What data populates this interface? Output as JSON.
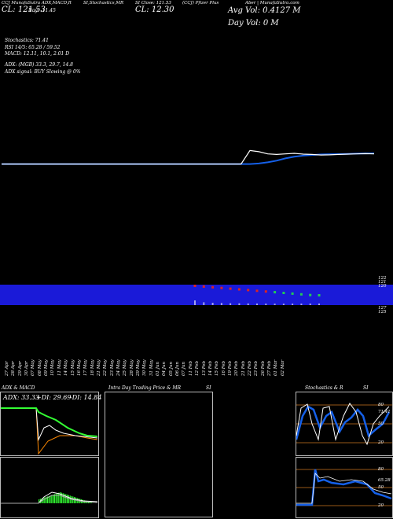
{
  "header": {
    "line1_left": "CCJ MunafaSutra ADX,MACD,R",
    "line1_stoch": "SI,Stochastics,MR",
    "line1_close": "SI Close: 121.53",
    "line1_mid": "(CCJ) Pfizer Plus",
    "line1_right": "Aber | MunafaSutra.com",
    "line2_left": "CL: 121.53",
    "line2_day": "Day: -11.45",
    "line2_cl": "CL: 12.30",
    "avg_vol": "Avg Vol: 0.4127 M",
    "day_vol": "Day Vol: 0  M"
  },
  "indicators": {
    "stochastics": "Stochastics: 71.41",
    "rsi": "RSI 14/5: 65.28 / 59.52",
    "macd": "MACD: 12.11,  10.1,  2.01 D",
    "adx": "ADX:             (MGB) 33.3,  29.7,  14.8",
    "adx_signal": "ADX  signal:                BUY Slowing @ 0%"
  },
  "price_labels": {
    "top_right": [
      "122",
      "121",
      "120"
    ],
    "bottom_right": [
      "127",
      "125"
    ]
  },
  "dates": [
    "27 Apr",
    "28 Apr",
    "29 Apr",
    "30 Apr",
    "07 May",
    "08 May",
    "09 May",
    "10 May",
    "11 May",
    "14 May",
    "15 May",
    "16 May",
    "17 May",
    "18 May",
    "21 May",
    "22 May",
    "23 May",
    "24 May",
    "25 May",
    "28 May",
    "29 May",
    "30 May",
    "31 May",
    "01 Jun",
    "04 Jun",
    "05 Jun",
    "06 Jun",
    "07 Jun",
    "11 Feb",
    "12 Feb",
    "13 Feb",
    "14 Feb",
    "15 Feb",
    "16 Feb",
    "19 Feb",
    "20 Feb",
    "21 Feb",
    "22 Feb",
    "23 Feb",
    "26 Feb",
    "27 Feb",
    "01 Mar",
    "02 Mar"
  ],
  "panels": {
    "adx_macd": {
      "title": "ADX  & MACD",
      "readout_adx": "ADX: 33.33",
      "readout_di_plus": "+DI: 29.69",
      "readout_di_minus": "-DI: 14.84"
    },
    "intraday": {
      "title": "Intra  Day Trading Price  & MR",
      "title_suffix": "SI"
    },
    "stoch_rsi": {
      "title": "Stochastics & R",
      "title_suffix": "SI",
      "levels_top": [
        "80",
        "50",
        "20"
      ],
      "levels_bottom": [
        "80",
        "50",
        "20"
      ],
      "value_top": "71.41",
      "value_bottom": "65.28"
    }
  },
  "colors": {
    "background": "#000000",
    "price_line": "#1560e8",
    "volume_band": "#1a1ad8",
    "sma_line": "#ffffff",
    "candle_up": "#22cc55",
    "candle_down": "#dd2222",
    "adx_line": "#33ff33",
    "di_minus_line": "#ff8800",
    "level_line": "#cc7722"
  },
  "chart_data": [
    {
      "type": "line",
      "title": "",
      "series": [
        {
          "name": "",
          "values": [
            121.0,
            121.0,
            121.0,
            121.0,
            121.0,
            121.0,
            121.0,
            121.0,
            121.0,
            121.0,
            121.0,
            121.0,
            121.0,
            121.0,
            121.0,
            121.0,
            121.0,
            121.0,
            121.0,
            121.0,
            121.0,
            121.0,
            121.0,
            121.0,
            121.0,
            121.0,
            121.0,
            121.0,
            121.0,
            121.05,
            121.15,
            121.3,
            121.5,
            121.65,
            121.75,
            121.8,
            121.85,
            121.87,
            121.88,
            121.9,
            121.92,
            121.94,
            121.95
          ]
        },
        {
          "name": "",
          "values": [
            121.0,
            121.0,
            121.0,
            121.0,
            121.0,
            121.0,
            121.0,
            121.0,
            121.0,
            121.0,
            121.0,
            121.0,
            121.0,
            121.0,
            121.0,
            121.0,
            121.0,
            121.0,
            121.0,
            121.0,
            121.0,
            121.0,
            121.0,
            121.0,
            121.0,
            121.0,
            121.0,
            121.0,
            122.2,
            122.1,
            121.9,
            121.85,
            121.9,
            121.95,
            121.88,
            121.85,
            121.8,
            121.82,
            121.85,
            121.88,
            121.9,
            121.92,
            121.9
          ]
        }
      ],
      "ylim": [
        119.5,
        123
      ]
    },
    {
      "type": "bar",
      "title": "Volume",
      "values": [
        0,
        0,
        0,
        0,
        0,
        0,
        0,
        0,
        0,
        0,
        0,
        0,
        0,
        0,
        0,
        0,
        0,
        0,
        0,
        0,
        0,
        0,
        0,
        0,
        0,
        0,
        0,
        0,
        1.0,
        0.6,
        0.5,
        0.45,
        0.4,
        0.38,
        0.35,
        0.33,
        0.32,
        0.3,
        0.3,
        0.31,
        0.32,
        0.33,
        0.34
      ]
    }
  ]
}
